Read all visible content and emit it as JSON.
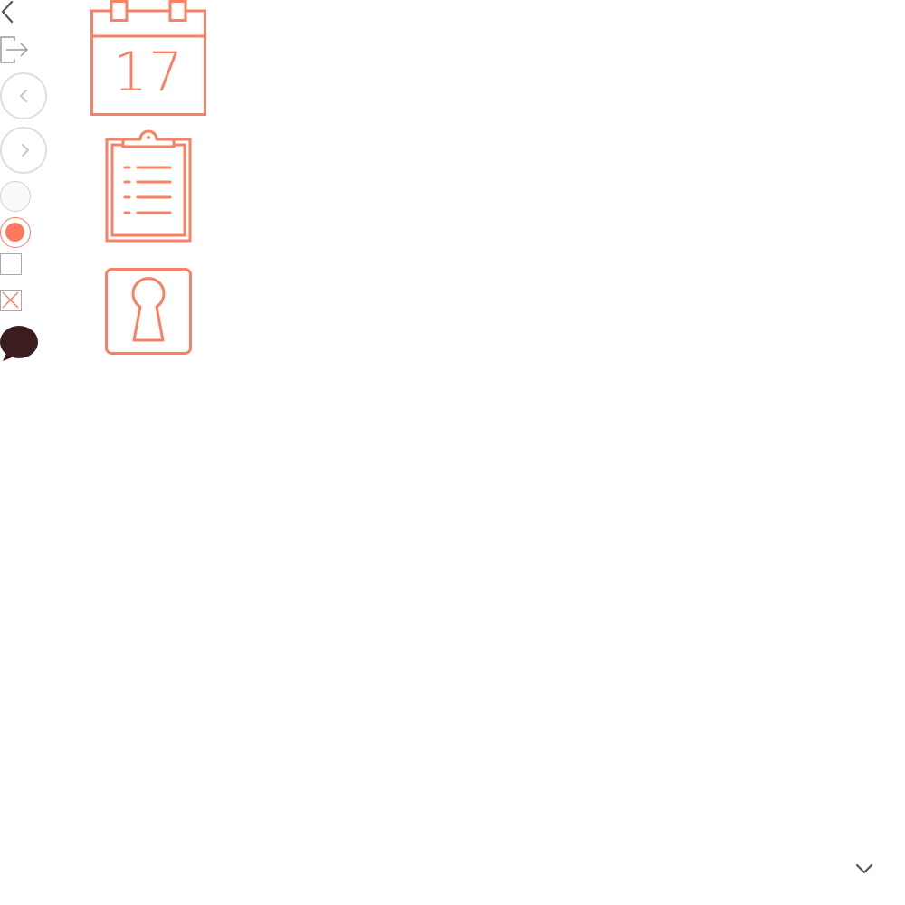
{
  "colors": {
    "accent": "#fa8064",
    "radio_accent": "#ff7a5c",
    "outline_gray": "#dedede",
    "icon_dark": "#555555",
    "chat_bubble": "#3b1c1f",
    "checkbox_cross": "#ff7a5c"
  },
  "controls": {
    "back_icon": "chevron-left-icon",
    "logout_icon": "logout-icon",
    "prev_button_icon": "chevron-left-icon",
    "next_button_icon": "chevron-right-icon",
    "radio_unchecked": false,
    "radio_checked": true,
    "checkbox_unchecked": false,
    "checkbox_crossed": true,
    "chat_icon": "speech-bubble-icon",
    "scroll_down_icon": "chevron-down-icon"
  },
  "feature_icons": {
    "calendar": {
      "icon": "calendar-icon",
      "day_number": "17"
    },
    "clipboard": {
      "icon": "clipboard-list-icon"
    },
    "lock": {
      "icon": "keyhole-icon"
    }
  }
}
